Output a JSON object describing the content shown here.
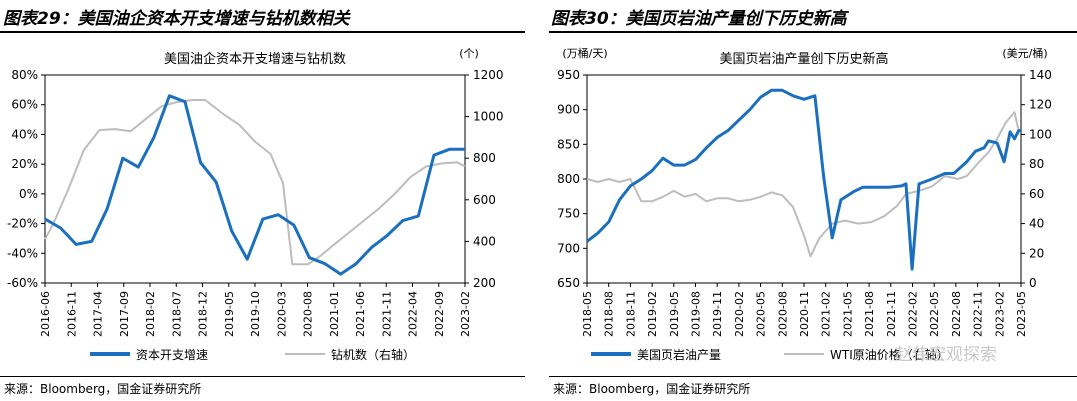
{
  "panels": {
    "left": {
      "figure_title": "图表29：美国油企资本开支增速与钻机数相关",
      "source": "来源：Bloomberg，国金证券研究所"
    },
    "right": {
      "figure_title": "图表30：美国页岩油产量创下历史新高",
      "source": "来源：Bloomberg，国金证券研究所"
    }
  },
  "watermark": "赵伟宏观探索",
  "chart_data": [
    {
      "type": "line",
      "title": "美国油企资本开支增速与钻机数",
      "ylabel": "",
      "y2label": "(个)",
      "ylim": [
        -60,
        80
      ],
      "ytick_labels": [
        "80%",
        "60%",
        "40%",
        "20%",
        "0%",
        "-20%",
        "-40%",
        "-60%"
      ],
      "y2lim": [
        200,
        1200
      ],
      "y2tick_labels": [
        "1200",
        "1000",
        "800",
        "600",
        "400",
        "200"
      ],
      "xrange": [
        2016.375,
        2023.125
      ],
      "xtick_labels": [
        "2016-06",
        "2016-11",
        "2017-04",
        "2017-09",
        "2018-02",
        "2018-07",
        "2018-12",
        "2019-05",
        "2019-10",
        "2020-03",
        "2020-08",
        "2021-01",
        "2021-06",
        "2021-11",
        "2022-04",
        "2022-09",
        "2023-02"
      ],
      "legend_position": "bottom",
      "series": [
        {
          "name": "资本开支增速",
          "axis": "left",
          "color": "#1a6fbf",
          "points": [
            [
              2016.375,
              -17
            ],
            [
              2016.625,
              -23
            ],
            [
              2016.875,
              -34
            ],
            [
              2017.125,
              -32
            ],
            [
              2017.375,
              -10
            ],
            [
              2017.625,
              24
            ],
            [
              2017.875,
              18
            ],
            [
              2018.125,
              38
            ],
            [
              2018.375,
              66
            ],
            [
              2018.625,
              62
            ],
            [
              2018.875,
              21
            ],
            [
              2019.125,
              8
            ],
            [
              2019.375,
              -25
            ],
            [
              2019.625,
              -44
            ],
            [
              2019.875,
              -17
            ],
            [
              2020.125,
              -14
            ],
            [
              2020.375,
              -21
            ],
            [
              2020.625,
              -43
            ],
            [
              2020.875,
              -47
            ],
            [
              2021.125,
              -54
            ],
            [
              2021.375,
              -47
            ],
            [
              2021.625,
              -36
            ],
            [
              2021.875,
              -28
            ],
            [
              2022.125,
              -18
            ],
            [
              2022.375,
              -15
            ],
            [
              2022.625,
              26
            ],
            [
              2022.875,
              30
            ],
            [
              2023.125,
              30
            ]
          ]
        },
        {
          "name": "钻机数（右轴）",
          "axis": "right",
          "color": "#bdbdbd",
          "points": [
            [
              2016.375,
              410
            ],
            [
              2016.5,
              480
            ],
            [
              2016.75,
              650
            ],
            [
              2017.0,
              840
            ],
            [
              2017.25,
              935
            ],
            [
              2017.5,
              940
            ],
            [
              2017.75,
              930
            ],
            [
              2018.0,
              990
            ],
            [
              2018.25,
              1050
            ],
            [
              2018.5,
              1070
            ],
            [
              2018.75,
              1080
            ],
            [
              2018.95,
              1080
            ],
            [
              2019.25,
              1010
            ],
            [
              2019.5,
              960
            ],
            [
              2019.75,
              880
            ],
            [
              2020.0,
              820
            ],
            [
              2020.2,
              680
            ],
            [
              2020.35,
              290
            ],
            [
              2020.6,
              290
            ],
            [
              2020.8,
              330
            ],
            [
              2021.0,
              380
            ],
            [
              2021.25,
              440
            ],
            [
              2021.5,
              500
            ],
            [
              2021.75,
              560
            ],
            [
              2022.0,
              630
            ],
            [
              2022.25,
              710
            ],
            [
              2022.5,
              760
            ],
            [
              2022.75,
              775
            ],
            [
              2023.0,
              780
            ],
            [
              2023.125,
              760
            ]
          ]
        }
      ]
    },
    {
      "type": "line",
      "title": "美国页岩油产量创下历史新高",
      "ylabel": "(万桶/天)",
      "y2label": "(美元/桶)",
      "ylim": [
        650,
        950
      ],
      "ytick_labels": [
        "950",
        "900",
        "850",
        "800",
        "750",
        "700",
        "650"
      ],
      "y2lim": [
        0,
        140
      ],
      "y2tick_labels": [
        "140",
        "120",
        "100",
        "80",
        "60",
        "40",
        "20",
        "0"
      ],
      "xrange": [
        2018.375,
        2023.375
      ],
      "xtick_labels": [
        "2018-05",
        "2018-08",
        "2018-11",
        "2019-02",
        "2019-05",
        "2019-08",
        "2019-11",
        "2020-02",
        "2020-05",
        "2020-08",
        "2020-11",
        "2021-02",
        "2021-05",
        "2021-08",
        "2021-11",
        "2022-02",
        "2022-05",
        "2022-08",
        "2022-11",
        "2023-02",
        "2023-05"
      ],
      "legend_position": "bottom",
      "series": [
        {
          "name": "美国页岩油产量",
          "axis": "left",
          "color": "#1a6fbf",
          "points": [
            [
              2018.375,
              710
            ],
            [
              2018.5,
              722
            ],
            [
              2018.625,
              738
            ],
            [
              2018.75,
              770
            ],
            [
              2018.875,
              790
            ],
            [
              2019.0,
              800
            ],
            [
              2019.125,
              812
            ],
            [
              2019.25,
              830
            ],
            [
              2019.375,
              820
            ],
            [
              2019.5,
              820
            ],
            [
              2019.625,
              828
            ],
            [
              2019.75,
              845
            ],
            [
              2019.875,
              860
            ],
            [
              2020.0,
              870
            ],
            [
              2020.125,
              885
            ],
            [
              2020.25,
              900
            ],
            [
              2020.375,
              918
            ],
            [
              2020.5,
              928
            ],
            [
              2020.625,
              928
            ],
            [
              2020.75,
              920
            ],
            [
              2020.875,
              915
            ],
            [
              2021.0,
              920
            ],
            [
              2021.1,
              805
            ],
            [
              2021.2,
              715
            ],
            [
              2021.3,
              770
            ],
            [
              2021.45,
              782
            ],
            [
              2021.55,
              788
            ],
            [
              2021.7,
              788
            ],
            [
              2021.85,
              788
            ],
            [
              2022.0,
              790
            ],
            [
              2022.05,
              793
            ],
            [
              2022.12,
              670
            ],
            [
              2022.2,
              793
            ],
            [
              2022.35,
              800
            ],
            [
              2022.5,
              808
            ],
            [
              2022.6,
              808
            ],
            [
              2022.75,
              825
            ],
            [
              2022.85,
              840
            ],
            [
              2022.95,
              845
            ],
            [
              2023.0,
              855
            ],
            [
              2023.1,
              852
            ],
            [
              2023.18,
              825
            ],
            [
              2023.25,
              868
            ],
            [
              2023.3,
              858
            ],
            [
              2023.35,
              870
            ],
            [
              2023.375,
              870
            ]
          ]
        },
        {
          "name": "WTI原油价格（右轴）",
          "axis": "right",
          "color": "#bdbdbd",
          "points": [
            [
              2018.375,
              70
            ],
            [
              2018.5,
              68
            ],
            [
              2018.625,
              70
            ],
            [
              2018.75,
              68
            ],
            [
              2018.875,
              70
            ],
            [
              2019.0,
              55
            ],
            [
              2019.125,
              55
            ],
            [
              2019.25,
              58
            ],
            [
              2019.375,
              62
            ],
            [
              2019.5,
              58
            ],
            [
              2019.625,
              60
            ],
            [
              2019.75,
              55
            ],
            [
              2019.875,
              57
            ],
            [
              2020.0,
              57
            ],
            [
              2020.125,
              55
            ],
            [
              2020.25,
              56
            ],
            [
              2020.375,
              58
            ],
            [
              2020.5,
              61
            ],
            [
              2020.625,
              59
            ],
            [
              2020.75,
              51
            ],
            [
              2020.875,
              32
            ],
            [
              2020.95,
              18
            ],
            [
              2021.05,
              30
            ],
            [
              2021.2,
              40
            ],
            [
              2021.35,
              42
            ],
            [
              2021.5,
              40
            ],
            [
              2021.65,
              41
            ],
            [
              2021.8,
              45
            ],
            [
              2021.95,
              52
            ],
            [
              2022.05,
              60
            ],
            [
              2022.2,
              62
            ],
            [
              2022.35,
              65
            ],
            [
              2022.5,
              72
            ],
            [
              2022.65,
              70
            ],
            [
              2022.75,
              72
            ],
            [
              2022.9,
              82
            ],
            [
              2023.0,
              88
            ],
            [
              2023.1,
              97
            ],
            [
              2023.2,
              108
            ],
            [
              2023.3,
              115
            ],
            [
              2023.35,
              102
            ]
          ]
        }
      ]
    }
  ]
}
